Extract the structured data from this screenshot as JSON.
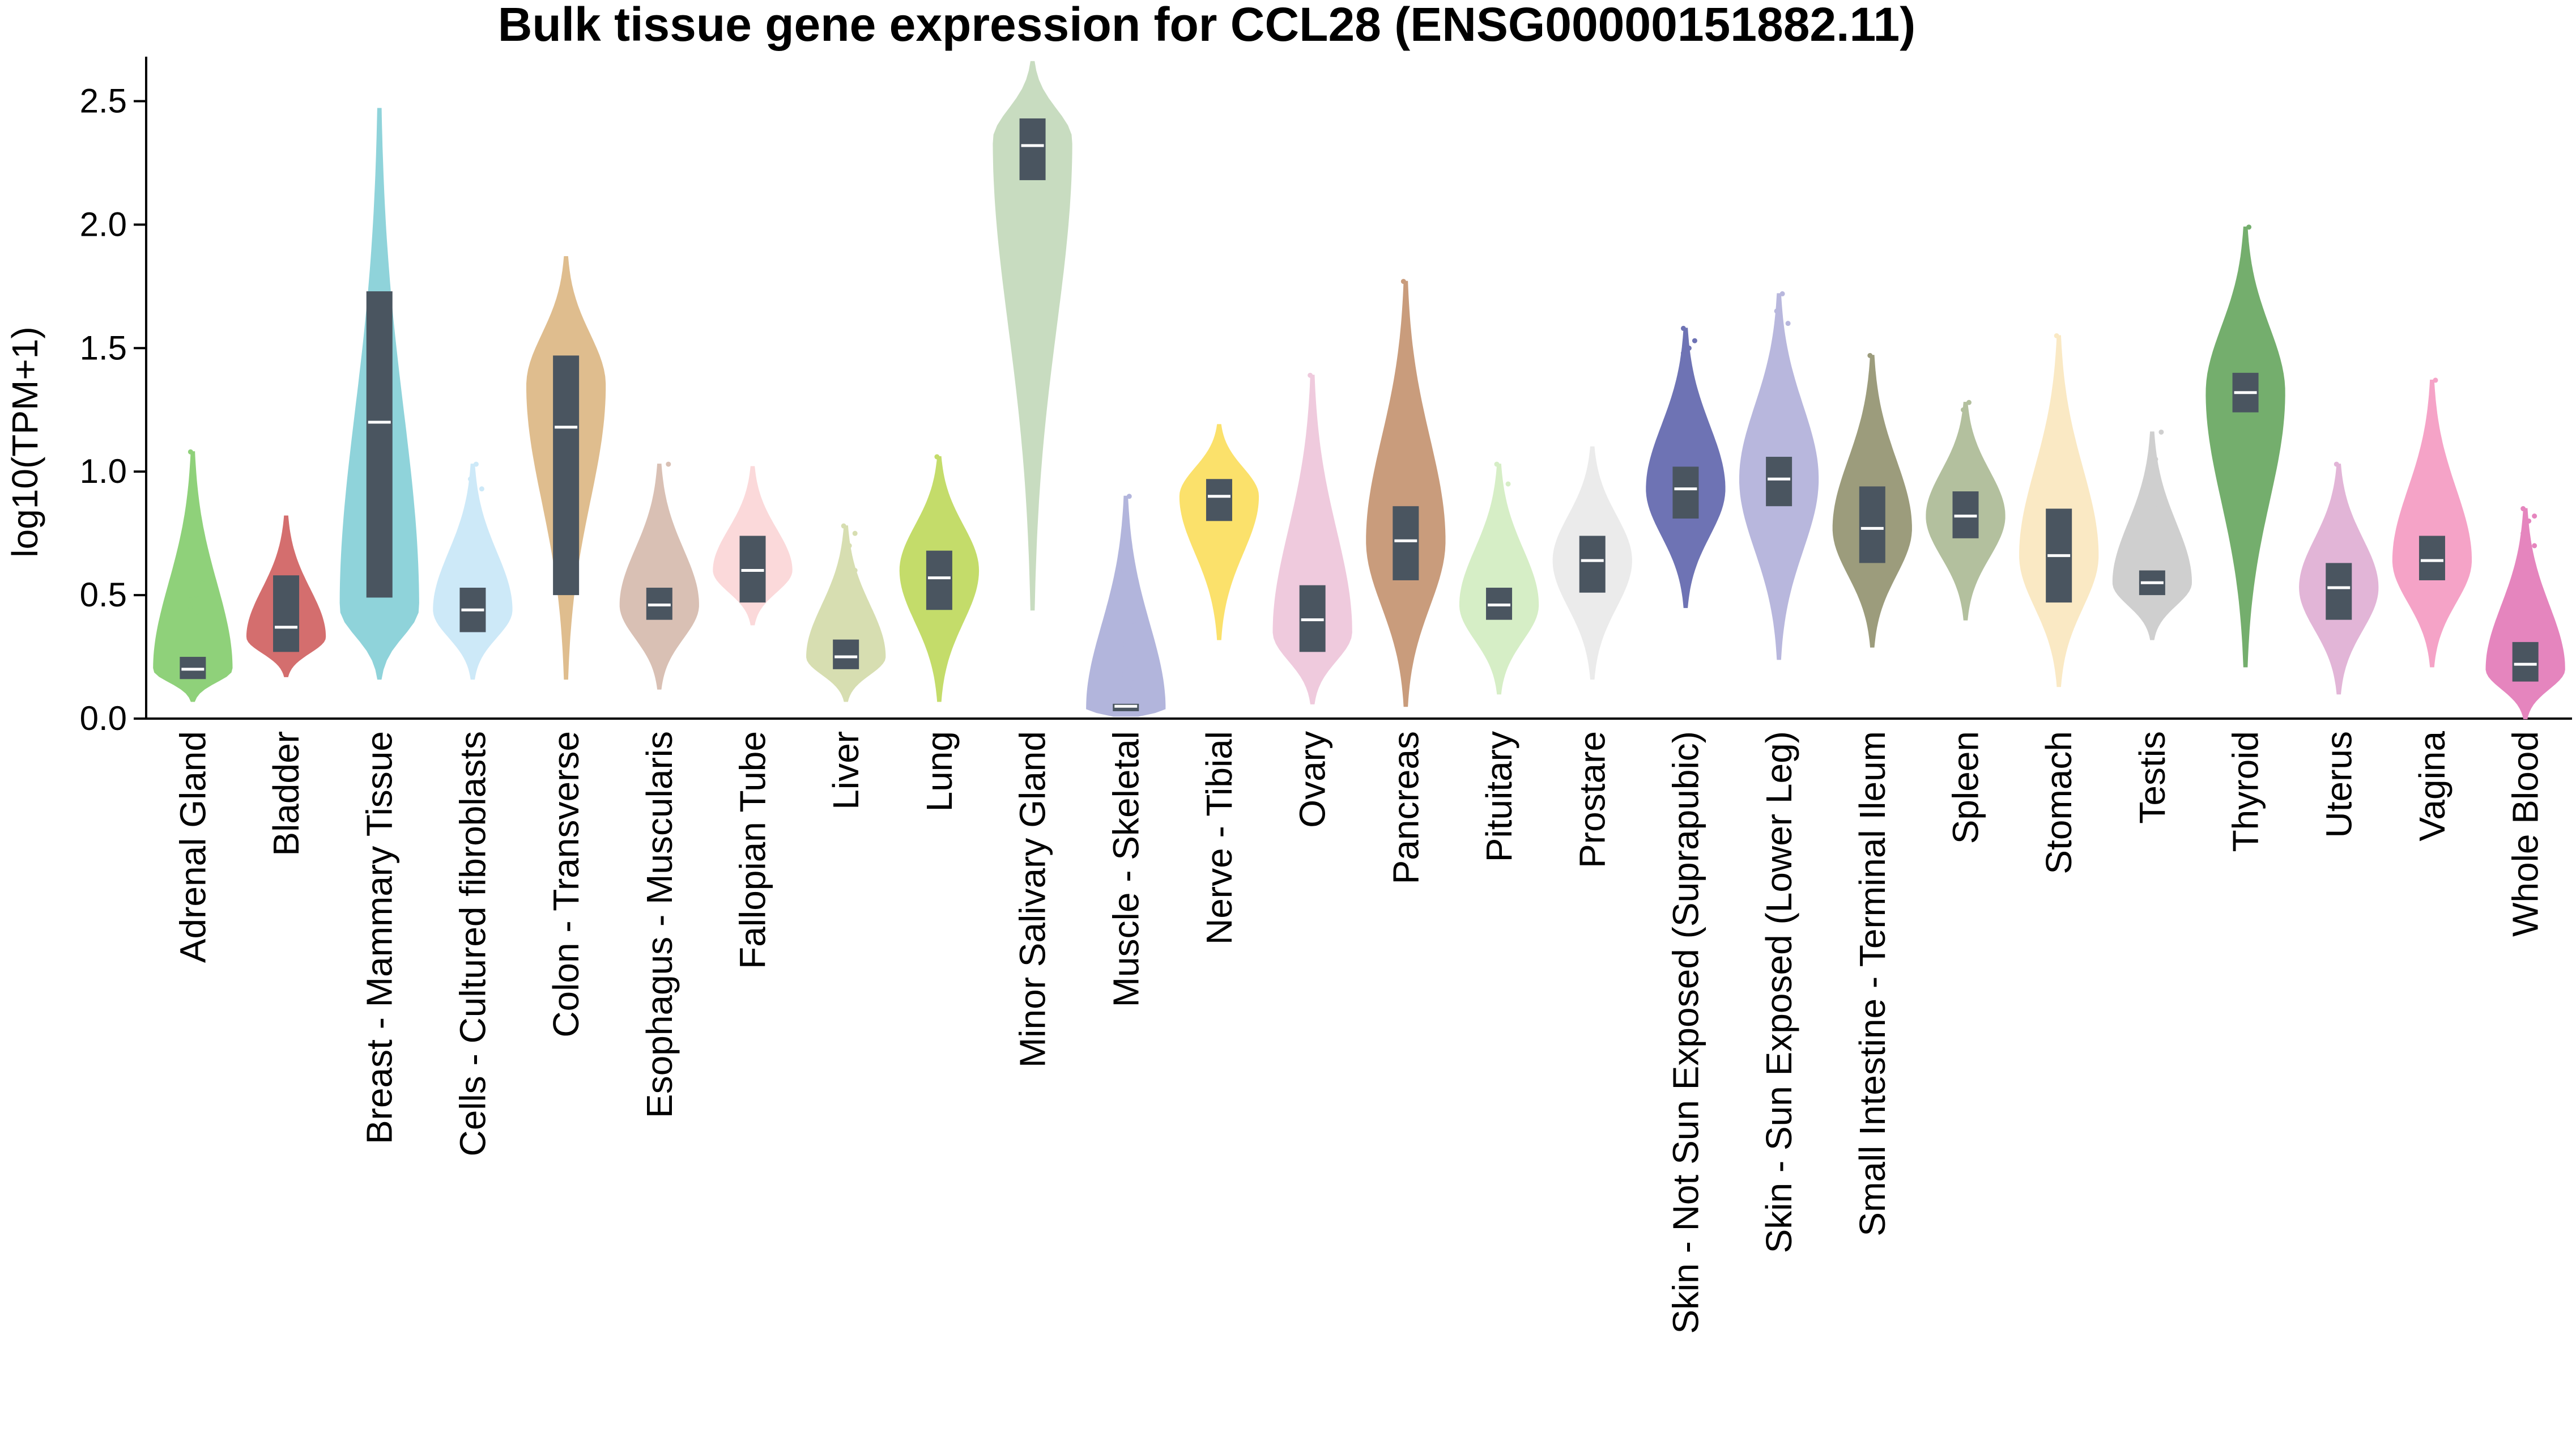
{
  "chart_data": {
    "type": "violin",
    "title": "Bulk tissue gene expression for CCL28 (ENSG00000151882.11)",
    "xlabel": "",
    "ylabel": "log10(TPM+1)",
    "ylim": [
      0,
      2.68
    ],
    "yticks": [
      "0.0",
      "0.5",
      "1.0",
      "1.5",
      "2.0",
      "2.5"
    ],
    "grid": false,
    "legend": "none",
    "box_color": "#4a5560",
    "median_color": "#ffffff",
    "series": [
      {
        "name": "Adrenal Gland",
        "color": "#8fd17a",
        "min": 0.07,
        "max": 1.08,
        "q1": 0.16,
        "median": 0.2,
        "q3": 0.25,
        "peak": 0.2,
        "outliers": [
          0.45,
          0.5,
          0.55,
          0.48,
          0.43,
          0.66,
          1.08
        ]
      },
      {
        "name": "Bladder",
        "color": "#d46e6e",
        "min": 0.17,
        "max": 0.82,
        "q1": 0.27,
        "median": 0.37,
        "q3": 0.58,
        "peak": 0.33,
        "outliers": []
      },
      {
        "name": "Breast - Mammary Tissue",
        "color": "#8fd3da",
        "min": 0.16,
        "max": 2.47,
        "q1": 0.49,
        "median": 1.2,
        "q3": 1.73,
        "peak": 0.45,
        "outliers": []
      },
      {
        "name": "Cells - Cultured fibroblasts",
        "color": "#cde9f8",
        "min": 0.16,
        "max": 1.03,
        "q1": 0.35,
        "median": 0.44,
        "q3": 0.53,
        "peak": 0.44,
        "outliers": [
          0.85,
          0.88,
          0.93,
          0.97,
          1.03
        ]
      },
      {
        "name": "Colon - Transverse",
        "color": "#dfbd8e",
        "min": 0.16,
        "max": 1.87,
        "q1": 0.5,
        "median": 1.18,
        "q3": 1.47,
        "peak": 1.35,
        "outliers": []
      },
      {
        "name": "Esophagus - Muscularis",
        "color": "#d9c0b4",
        "min": 0.12,
        "max": 1.03,
        "q1": 0.4,
        "median": 0.46,
        "q3": 0.53,
        "peak": 0.46,
        "outliers": [
          0.8,
          0.85,
          1.03
        ]
      },
      {
        "name": "Fallopian Tube",
        "color": "#fbd9da",
        "min": 0.38,
        "max": 1.02,
        "q1": 0.47,
        "median": 0.6,
        "q3": 0.74,
        "peak": 0.6,
        "outliers": []
      },
      {
        "name": "Liver",
        "color": "#d7deb1",
        "min": 0.07,
        "max": 0.78,
        "q1": 0.2,
        "median": 0.25,
        "q3": 0.32,
        "peak": 0.25,
        "outliers": [
          0.5,
          0.55,
          0.6,
          0.65,
          0.7,
          0.75,
          0.78
        ]
      },
      {
        "name": "Lung",
        "color": "#c4dc6a",
        "min": 0.07,
        "max": 1.06,
        "q1": 0.44,
        "median": 0.57,
        "q3": 0.68,
        "peak": 0.6,
        "outliers": [
          1.06
        ]
      },
      {
        "name": "Minor Salivary Gland",
        "color": "#c8dcc0",
        "min": 0.44,
        "max": 2.66,
        "q1": 2.18,
        "median": 2.32,
        "q3": 2.43,
        "peak": 2.34,
        "outliers": []
      },
      {
        "name": "Muscle - Skeletal",
        "color": "#b2b5dc",
        "min": 0.01,
        "max": 0.9,
        "q1": 0.03,
        "median": 0.05,
        "q3": 0.06,
        "peak": 0.04,
        "outliers": [
          0.1,
          0.12,
          0.15,
          0.18,
          0.2,
          0.25,
          0.3,
          0.35,
          0.38,
          0.6,
          0.9
        ]
      },
      {
        "name": "Nerve - Tibial",
        "color": "#fbe16b",
        "min": 0.32,
        "max": 1.19,
        "q1": 0.8,
        "median": 0.9,
        "q3": 0.97,
        "peak": 0.9,
        "outliers": []
      },
      {
        "name": "Ovary",
        "color": "#efcadd",
        "min": 0.06,
        "max": 1.39,
        "q1": 0.27,
        "median": 0.4,
        "q3": 0.54,
        "peak": 0.35,
        "outliers": [
          1.39
        ]
      },
      {
        "name": "Pancreas",
        "color": "#c99c7c",
        "min": 0.05,
        "max": 1.77,
        "q1": 0.56,
        "median": 0.72,
        "q3": 0.86,
        "peak": 0.72,
        "outliers": [
          1.77
        ]
      },
      {
        "name": "Pituitary",
        "color": "#d6eec6",
        "min": 0.1,
        "max": 1.03,
        "q1": 0.4,
        "median": 0.46,
        "q3": 0.53,
        "peak": 0.46,
        "outliers": [
          0.8,
          0.9,
          0.95,
          1.03
        ]
      },
      {
        "name": "Prostare",
        "color": "#ebebeb",
        "min": 0.16,
        "max": 1.1,
        "q1": 0.51,
        "median": 0.64,
        "q3": 0.74,
        "peak": 0.64,
        "outliers": []
      },
      {
        "name": "Skin - Not Sun Exposed (Suprapubic)",
        "color": "#6e73b4",
        "min": 0.45,
        "max": 1.58,
        "q1": 0.81,
        "median": 0.93,
        "q3": 1.02,
        "peak": 0.93,
        "outliers": [
          1.48,
          1.5,
          1.53,
          1.58
        ]
      },
      {
        "name": "Skin - Sun Exposed (Lower Leg)",
        "color": "#b8b7dd",
        "min": 0.24,
        "max": 1.72,
        "q1": 0.86,
        "median": 0.97,
        "q3": 1.06,
        "peak": 0.97,
        "outliers": [
          1.45,
          1.5,
          1.6,
          1.65,
          1.72
        ]
      },
      {
        "name": "Small Intestine - Terminal Ileum",
        "color": "#9c9c7c",
        "min": 0.29,
        "max": 1.47,
        "q1": 0.63,
        "median": 0.77,
        "q3": 0.94,
        "peak": 0.77,
        "outliers": [
          1.47
        ]
      },
      {
        "name": "Spleen",
        "color": "#b3c09e",
        "min": 0.4,
        "max": 1.28,
        "q1": 0.73,
        "median": 0.82,
        "q3": 0.92,
        "peak": 0.82,
        "outliers": [
          1.25,
          1.28
        ]
      },
      {
        "name": "Stomach",
        "color": "#fae9c4",
        "min": 0.13,
        "max": 1.55,
        "q1": 0.47,
        "median": 0.66,
        "q3": 0.85,
        "peak": 0.66,
        "outliers": [
          1.55
        ]
      },
      {
        "name": "Testis",
        "color": "#cfcfcf",
        "min": 0.32,
        "max": 1.16,
        "q1": 0.5,
        "median": 0.55,
        "q3": 0.6,
        "peak": 0.55,
        "outliers": [
          0.78,
          0.85,
          0.9,
          0.95,
          1.05,
          1.16
        ]
      },
      {
        "name": "Thyroid",
        "color": "#74ae6d",
        "min": 0.21,
        "max": 1.99,
        "q1": 1.24,
        "median": 1.32,
        "q3": 1.4,
        "peak": 1.32,
        "outliers": [
          1.85,
          1.99
        ]
      },
      {
        "name": "Uterus",
        "color": "#e2b5d7",
        "min": 0.1,
        "max": 1.03,
        "q1": 0.4,
        "median": 0.53,
        "q3": 0.63,
        "peak": 0.53,
        "outliers": [
          1.03
        ]
      },
      {
        "name": "Vagina",
        "color": "#f5a3c7",
        "min": 0.21,
        "max": 1.37,
        "q1": 0.56,
        "median": 0.64,
        "q3": 0.74,
        "peak": 0.64,
        "outliers": [
          1.15,
          1.37
        ]
      },
      {
        "name": "Whole Blood",
        "color": "#e585be",
        "min": 0.0,
        "max": 0.85,
        "q1": 0.15,
        "median": 0.22,
        "q3": 0.31,
        "peak": 0.2,
        "outliers": [
          0.6,
          0.65,
          0.7,
          0.75,
          0.8,
          0.82,
          0.85
        ]
      }
    ]
  }
}
